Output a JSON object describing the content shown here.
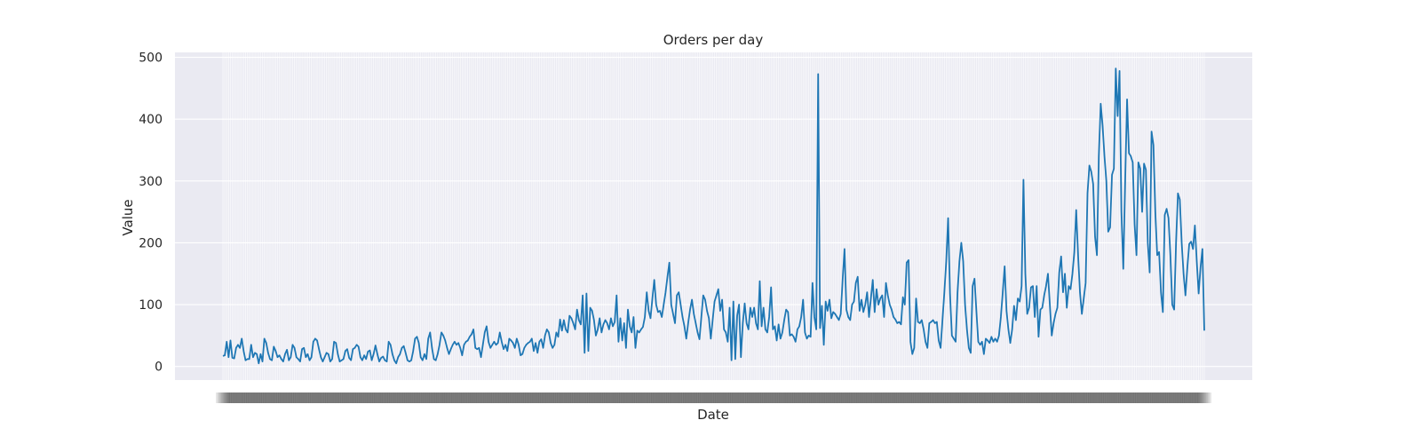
{
  "chart_data": {
    "type": "line",
    "title": "Orders per day",
    "xlabel": "Date",
    "ylabel": "Value",
    "ylim": [
      -22,
      508
    ],
    "yticks": [
      0,
      100,
      200,
      300,
      400,
      500
    ],
    "grid": true,
    "legend": "none",
    "colors": {
      "background": "#eaeaf2",
      "grid": "#ffffff",
      "line": "#1f77b4",
      "text": "#262626"
    },
    "x_tick_labels_note": "",
    "series": [
      {
        "values": [
          17,
          18,
          40,
          15,
          42,
          14,
          13,
          30,
          35,
          30,
          45,
          25,
          10,
          12,
          12,
          35,
          15,
          22,
          20,
          5,
          20,
          8,
          45,
          38,
          22,
          12,
          10,
          32,
          25,
          15,
          18,
          12,
          8,
          20,
          27,
          10,
          15,
          35,
          30,
          15,
          12,
          8,
          28,
          30,
          15,
          20,
          10,
          15,
          40,
          45,
          42,
          28,
          15,
          8,
          15,
          22,
          20,
          8,
          12,
          40,
          38,
          20,
          8,
          10,
          12,
          25,
          28,
          14,
          10,
          28,
          30,
          35,
          32,
          15,
          10,
          18,
          12,
          24,
          26,
          10,
          20,
          34,
          20,
          8,
          14,
          16,
          10,
          8,
          40,
          35,
          20,
          10,
          5,
          15,
          20,
          30,
          33,
          22,
          10,
          8,
          10,
          25,
          45,
          48,
          38,
          15,
          10,
          20,
          12,
          45,
          55,
          30,
          12,
          10,
          20,
          35,
          55,
          50,
          42,
          30,
          20,
          28,
          35,
          40,
          35,
          38,
          30,
          18,
          35,
          40,
          42,
          48,
          52,
          60,
          30,
          28,
          30,
          15,
          35,
          55,
          65,
          40,
          30,
          35,
          40,
          35,
          38,
          55,
          40,
          28,
          35,
          25,
          45,
          42,
          38,
          30,
          45,
          35,
          18,
          20,
          30,
          35,
          38,
          40,
          45,
          25,
          38,
          22,
          40,
          44,
          30,
          50,
          60,
          55,
          38,
          30,
          35,
          55,
          48,
          76,
          58,
          75,
          60,
          55,
          82,
          78,
          70,
          60,
          92,
          75,
          68,
          115,
          22,
          118,
          25,
          95,
          90,
          75,
          50,
          60,
          78,
          55,
          68,
          75,
          70,
          60,
          78,
          65,
          72,
          115,
          40,
          78,
          42,
          70,
          30,
          92,
          65,
          55,
          80,
          30,
          58,
          55,
          60,
          64,
          80,
          120,
          90,
          78,
          110,
          140,
          100,
          88,
          90,
          80,
          100,
          120,
          145,
          168,
          100,
          85,
          70,
          115,
          120,
          100,
          80,
          65,
          45,
          70,
          92,
          108,
          85,
          70,
          55,
          44,
          80,
          115,
          108,
          90,
          78,
          45,
          75,
          105,
          115,
          125,
          90,
          108,
          60,
          55,
          40,
          95,
          10,
          105,
          12,
          82,
          100,
          15,
          70,
          102,
          70,
          60,
          95,
          80,
          95,
          70,
          60,
          138,
          65,
          95,
          60,
          55,
          80,
          128,
          60,
          65,
          42,
          68,
          45,
          55,
          75,
          92,
          88,
          50,
          52,
          48,
          40,
          60,
          65,
          80,
          108,
          55,
          45,
          50,
          48,
          135,
          80,
          60,
          473,
          62,
          98,
          35,
          105,
          90,
          108,
          78,
          88,
          85,
          80,
          75,
          85,
          140,
          190,
          92,
          80,
          75,
          100,
          105,
          135,
          145,
          90,
          108,
          88,
          100,
          120,
          80,
          110,
          140,
          88,
          125,
          100,
          110,
          115,
          80,
          135,
          115,
          100,
          92,
          80,
          76,
          70,
          72,
          68,
          112,
          100,
          168,
          172,
          40,
          20,
          30,
          110,
          72,
          70,
          75,
          60,
          40,
          30,
          70,
          72,
          75,
          70,
          72,
          42,
          30,
          75,
          120,
          170,
          240,
          118,
          50,
          45,
          40,
          120,
          170,
          200,
          170,
          100,
          60,
          30,
          22,
          130,
          142,
          90,
          40,
          35,
          40,
          20,
          45,
          42,
          38,
          48,
          40,
          45,
          40,
          50,
          80,
          120,
          162,
          90,
          60,
          38,
          60,
          98,
          75,
          110,
          105,
          130,
          302,
          150,
          85,
          95,
          128,
          130,
          80,
          130,
          48,
          92,
          95,
          115,
          130,
          150,
          100,
          50,
          70,
          85,
          95,
          152,
          178,
          120,
          150,
          95,
          130,
          125,
          150,
          185,
          253,
          180,
          120,
          85,
          110,
          135,
          280,
          325,
          315,
          295,
          210,
          180,
          340,
          425,
          390,
          340,
          300,
          218,
          225,
          310,
          320,
          482,
          405,
          478,
          250,
          158,
          300,
          432,
          345,
          340,
          330,
          230,
          180,
          330,
          320,
          250,
          328,
          318,
          200,
          152,
          380,
          358,
          250,
          180,
          185,
          120,
          88,
          245,
          255,
          240,
          180,
          100,
          92,
          200,
          280,
          270,
          200,
          150,
          115,
          160,
          198,
          202,
          190,
          228,
          170,
          118,
          160,
          190,
          58
        ]
      }
    ]
  }
}
